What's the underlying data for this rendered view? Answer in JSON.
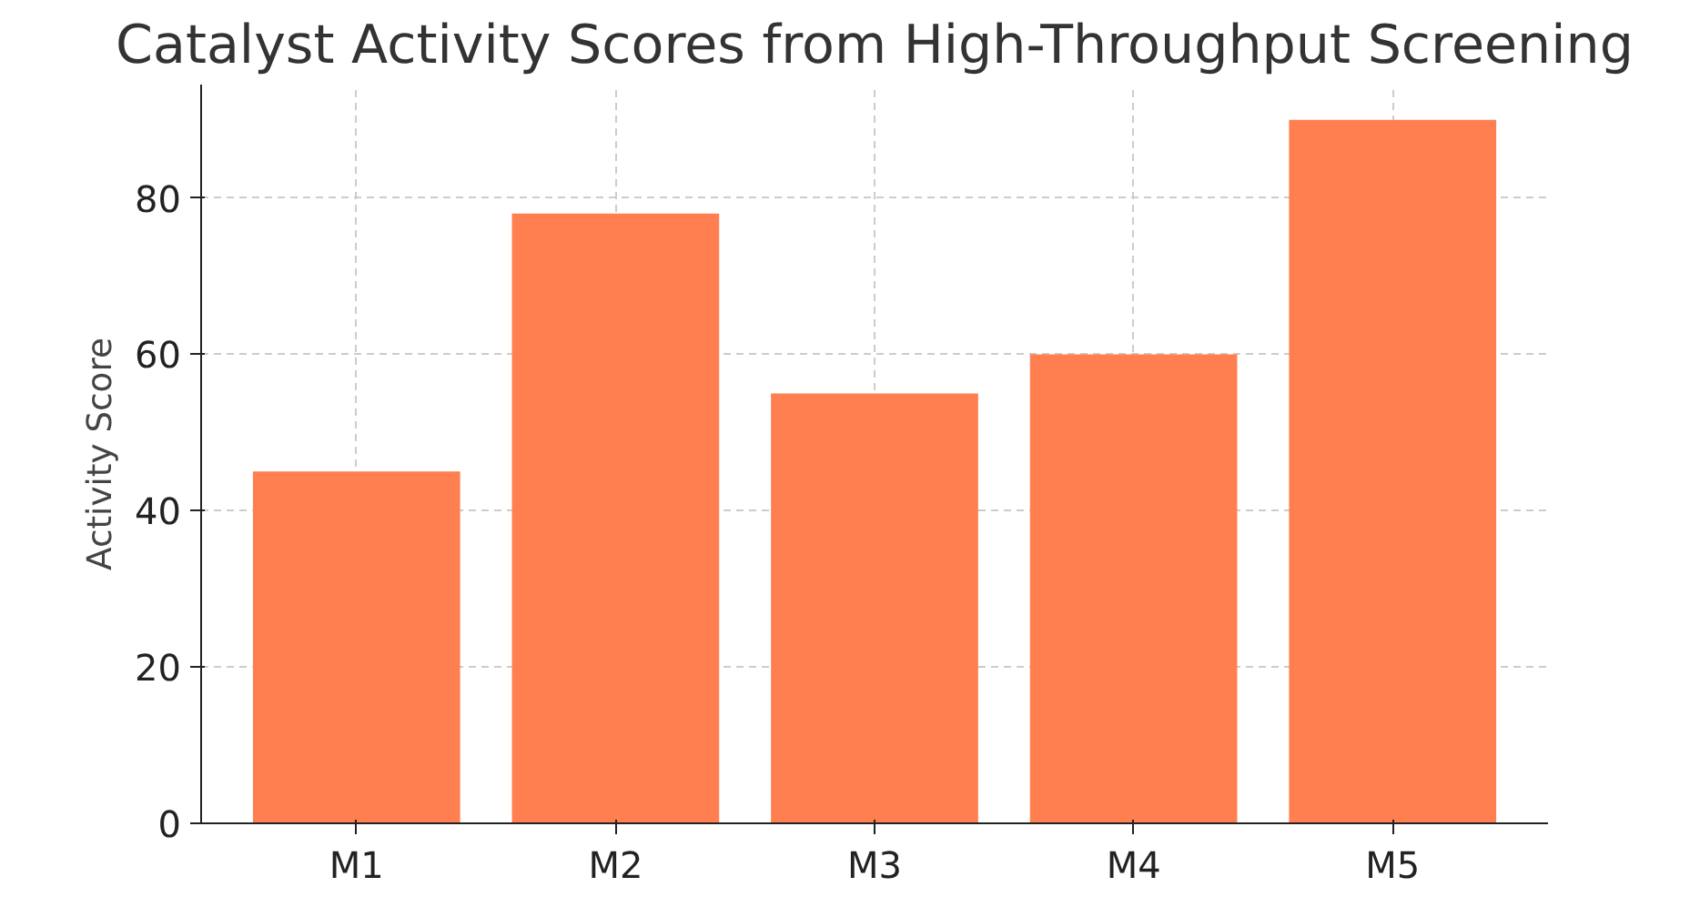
{
  "chart_data": {
    "type": "bar",
    "title": "Catalyst Activity Scores from High-Throughput Screening",
    "ylabel": "Activity Score",
    "categories": [
      "M1",
      "M2",
      "M3",
      "M4",
      "M5"
    ],
    "values": [
      45,
      78,
      55,
      60,
      90
    ],
    "color": "#ff7f50",
    "ylim": [
      0,
      94.5
    ],
    "yticks": [
      0,
      20,
      40,
      60,
      80
    ],
    "grid": true
  }
}
